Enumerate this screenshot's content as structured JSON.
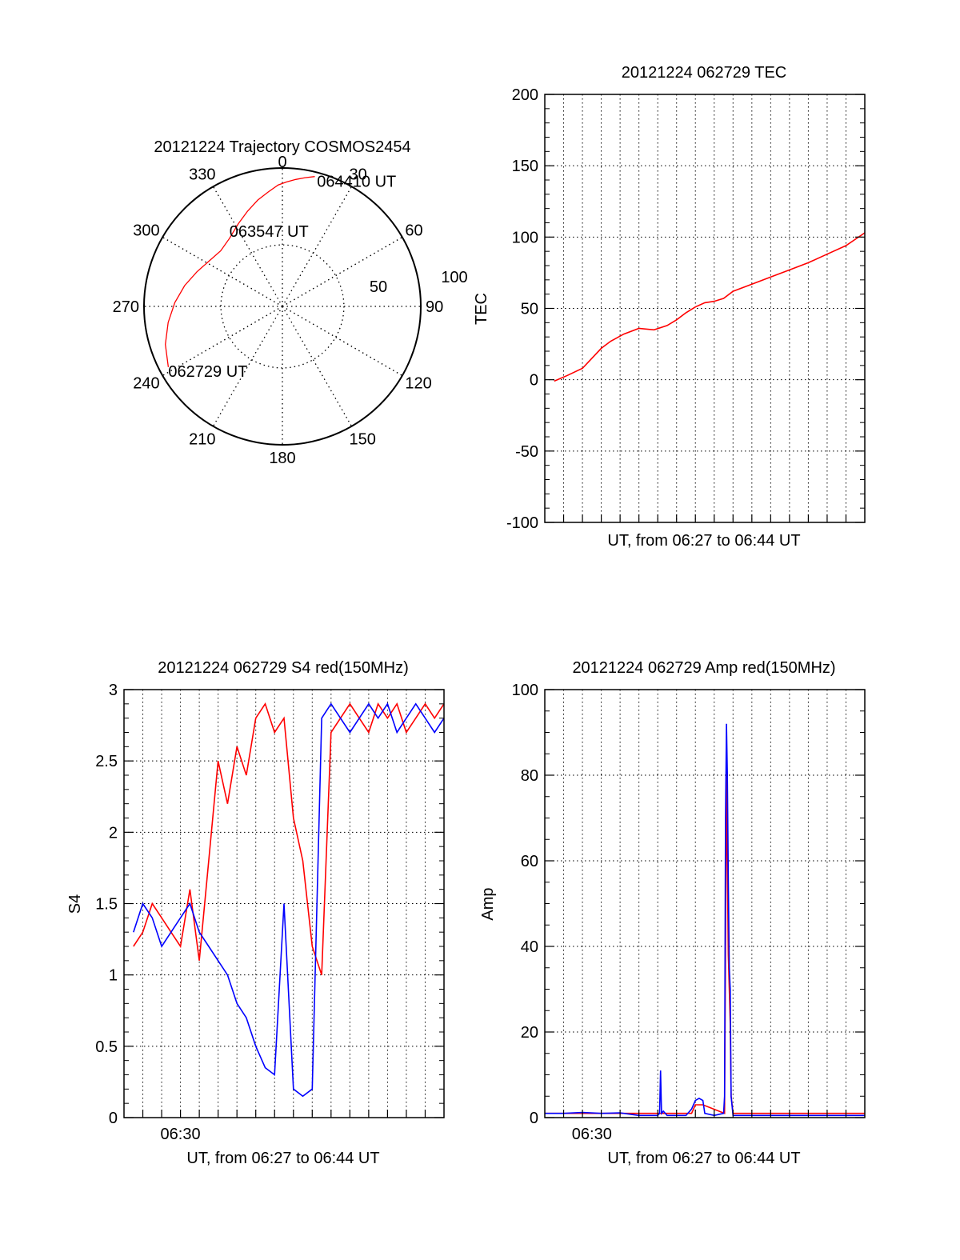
{
  "colors": {
    "red": "#ff0000",
    "blue": "#0000ff",
    "axis": "#000000",
    "grid": "#000000"
  },
  "chart_data": [
    {
      "type": "polar",
      "title": "20121224 Trajectory COSMOS2454",
      "angle_labels": [
        "0",
        "30",
        "60",
        "90",
        "120",
        "150",
        "180",
        "210",
        "240",
        "270",
        "300",
        "330"
      ],
      "radial_labels": [
        "50",
        "100"
      ],
      "series": [
        {
          "color": "red",
          "points": [
            {
              "az": 242,
              "el": 6
            },
            {
              "az": 252,
              "el": 10
            },
            {
              "az": 262,
              "el": 15
            },
            {
              "az": 272,
              "el": 20
            },
            {
              "az": 282,
              "el": 25
            },
            {
              "az": 292,
              "el": 30
            },
            {
              "az": 302,
              "el": 34
            },
            {
              "az": 312,
              "el": 36
            },
            {
              "az": 322,
              "el": 34
            },
            {
              "az": 332,
              "el": 29
            },
            {
              "az": 340,
              "el": 24
            },
            {
              "az": 347,
              "el": 19
            },
            {
              "az": 353,
              "el": 15
            },
            {
              "az": 358,
              "el": 11
            },
            {
              "az": 2,
              "el": 9
            },
            {
              "az": 6,
              "el": 7
            },
            {
              "az": 10,
              "el": 5
            },
            {
              "az": 14,
              "el": 3
            }
          ]
        }
      ],
      "annotations": [
        {
          "text": "062729 UT",
          "az": 242,
          "el": 6
        },
        {
          "text": "063547 UT",
          "az": 322,
          "el": 34
        },
        {
          "text": "064410 UT",
          "az": 15,
          "el": 3
        }
      ]
    },
    {
      "type": "line",
      "title": "20121224 062729 TEC",
      "xlabel": "UT, from 06:27 to 06:44 UT",
      "ylabel": "TEC",
      "xlim": [
        0,
        17
      ],
      "ylim": [
        -100,
        200
      ],
      "yticks": [
        -100,
        -50,
        0,
        50,
        100,
        150,
        200
      ],
      "grid": true,
      "series": [
        {
          "color": "red",
          "x": [
            0.5,
            1.2,
            2.0,
            2.5,
            3.0,
            3.5,
            4.2,
            5.0,
            5.8,
            6.5,
            7.0,
            7.5,
            8.0,
            8.5,
            9.0,
            9.5,
            10.0,
            11.0,
            12.0,
            13.0,
            14.0,
            15.0,
            16.0,
            17.0
          ],
          "y": [
            -1,
            3,
            8,
            15,
            22,
            27,
            32,
            36,
            35,
            38,
            42,
            47,
            51,
            54,
            55,
            57,
            62,
            67,
            72,
            77,
            82,
            88,
            94,
            103
          ]
        }
      ]
    },
    {
      "type": "line",
      "title": "20121224 062729 S4 red(150MHz)",
      "xlabel": "UT, from 06:27 to 06:44 UT",
      "ylabel": "S4",
      "xlim": [
        0,
        17
      ],
      "ylim": [
        0,
        3
      ],
      "yticks": [
        0,
        0.5,
        1,
        1.5,
        2,
        2.5,
        3
      ],
      "xticks": [
        {
          "x": 3,
          "label": "06:30"
        }
      ],
      "grid": true,
      "series": [
        {
          "name": "",
          "color": "red",
          "x": [
            0.5,
            1.0,
            1.5,
            2.0,
            2.5,
            3.0,
            3.5,
            4.0,
            4.5,
            5.0,
            5.5,
            6.0,
            6.5,
            7.0,
            7.5,
            8.0,
            8.5,
            9.0,
            9.5,
            10.0,
            10.5,
            11.0,
            11.5,
            12.0,
            12.5,
            13.0,
            13.5,
            14.0,
            14.5,
            15.0,
            15.5,
            16.0,
            16.5,
            17.0
          ],
          "y": [
            1.2,
            1.3,
            1.5,
            1.4,
            1.3,
            1.2,
            1.6,
            1.1,
            1.8,
            2.5,
            2.2,
            2.6,
            2.4,
            2.8,
            2.9,
            2.7,
            2.8,
            2.1,
            1.8,
            1.2,
            1.0,
            2.7,
            2.8,
            2.9,
            2.8,
            2.7,
            2.9,
            2.8,
            2.9,
            2.7,
            2.8,
            2.9,
            2.8,
            2.9
          ]
        },
        {
          "name": "",
          "color": "blue",
          "x": [
            0.5,
            1.0,
            1.5,
            2.0,
            2.5,
            3.0,
            3.5,
            4.0,
            4.5,
            5.0,
            5.5,
            6.0,
            6.5,
            7.0,
            7.5,
            8.0,
            8.5,
            9.0,
            9.5,
            10.0,
            10.5,
            11.0,
            11.5,
            12.0,
            12.5,
            13.0,
            13.5,
            14.0,
            14.5,
            15.0,
            15.5,
            16.0,
            16.5,
            17.0
          ],
          "y": [
            1.3,
            1.5,
            1.4,
            1.2,
            1.3,
            1.4,
            1.5,
            1.3,
            1.2,
            1.1,
            1.0,
            0.8,
            0.7,
            0.5,
            0.35,
            0.3,
            1.5,
            0.2,
            0.15,
            0.2,
            2.8,
            2.9,
            2.8,
            2.7,
            2.8,
            2.9,
            2.8,
            2.9,
            2.7,
            2.8,
            2.9,
            2.8,
            2.7,
            2.8
          ]
        }
      ]
    },
    {
      "type": "line",
      "title": "20121224 062729 Amp red(150MHz)",
      "xlabel": "UT, from 06:27 to 06:44 UT",
      "ylabel": "Amp",
      "xlim": [
        0,
        17
      ],
      "ylim": [
        0,
        100
      ],
      "yticks": [
        0,
        20,
        40,
        60,
        80,
        100
      ],
      "xticks": [
        {
          "x": 2.5,
          "label": "06:30"
        }
      ],
      "grid": true,
      "series": [
        {
          "name": "",
          "color": "red",
          "x": [
            0,
            4.0,
            6.1,
            6.15,
            6.2,
            6.4,
            7.8,
            8.0,
            8.4,
            9.55,
            9.6,
            9.65,
            9.7,
            9.75,
            9.8,
            9.85,
            9.9,
            10.0,
            12.0,
            17.0
          ],
          "y": [
            1,
            1,
            1,
            1,
            1,
            1,
            1,
            3,
            3,
            1,
            40,
            82,
            60,
            38,
            30,
            22,
            5,
            1,
            1,
            1
          ]
        },
        {
          "name": "",
          "color": "blue",
          "x": [
            0,
            1.0,
            2.0,
            3.0,
            4.0,
            5.0,
            6.0,
            6.1,
            6.15,
            6.2,
            6.3,
            6.5,
            7.0,
            7.5,
            7.8,
            8.0,
            8.2,
            8.4,
            8.5,
            9.0,
            9.5,
            9.55,
            9.6,
            9.65,
            9.7,
            9.75,
            9.8,
            9.85,
            9.9,
            10.0,
            12.0,
            14.0,
            17.0
          ],
          "y": [
            1,
            1,
            1.2,
            1,
            1.1,
            0.5,
            0.5,
            1,
            11,
            1,
            1.5,
            0.5,
            0.5,
            0.5,
            2,
            4,
            4.5,
            4,
            1,
            0.5,
            1,
            5,
            70,
            92,
            80,
            55,
            35,
            30,
            5,
            0.5,
            0.5,
            0.5,
            0.5
          ]
        }
      ]
    }
  ]
}
